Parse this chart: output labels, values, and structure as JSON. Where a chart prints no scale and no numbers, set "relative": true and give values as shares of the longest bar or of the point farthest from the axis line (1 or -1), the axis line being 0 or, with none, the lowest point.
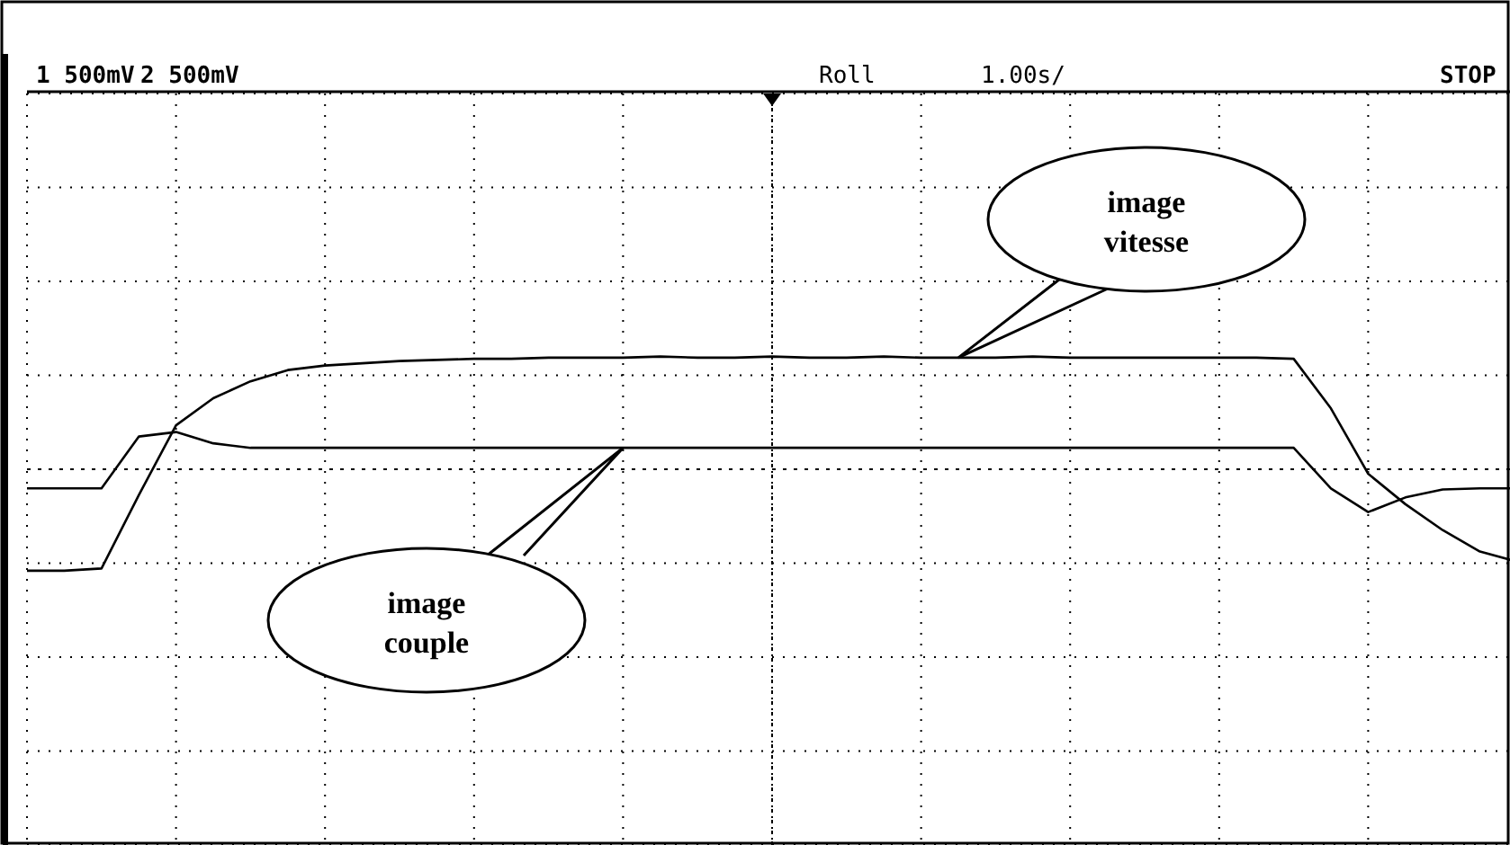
{
  "chart_data": {
    "type": "line",
    "relative": true,
    "grid": true,
    "categories": [
      null,
      null,
      null,
      null,
      null,
      null,
      null,
      null,
      null,
      null,
      null,
      null,
      null,
      null,
      null,
      null,
      null,
      null,
      null,
      null,
      null,
      null,
      null,
      null,
      null,
      null,
      null,
      null,
      null,
      null,
      null,
      null,
      null,
      null,
      null,
      null,
      null,
      null,
      null,
      null,
      null
    ],
    "series": [
      {
        "color": "#000000",
        "values": [
          -0.9,
          -0.9,
          -0.88,
          -0.23,
          0.39,
          0.63,
          0.78,
          0.88,
          0.92,
          0.94,
          0.96,
          0.97,
          0.98,
          0.98,
          0.99,
          0.99,
          0.99,
          1,
          0.99,
          0.99,
          1,
          0.99,
          0.99,
          1,
          0.99,
          0.99,
          0.99,
          1,
          0.99,
          0.99,
          0.99,
          0.99,
          0.99,
          0.99,
          0.98,
          0.54,
          -0.04,
          -0.31,
          -0.54,
          -0.73,
          -0.82
        ]
      },
      {
        "color": "#000000",
        "values": [
          -0.17,
          -0.17,
          -0.17,
          0.29,
          0.33,
          0.23,
          0.19,
          0.19,
          0.19,
          0.19,
          0.19,
          0.19,
          0.19,
          0.19,
          0.19,
          0.19,
          0.19,
          0.19,
          0.19,
          0.19,
          0.19,
          0.19,
          0.19,
          0.19,
          0.19,
          0.19,
          0.19,
          0.19,
          0.19,
          0.19,
          0.19,
          0.19,
          0.19,
          0.19,
          0.19,
          -0.17,
          -0.38,
          -0.25,
          -0.18,
          -0.17,
          -0.17
        ]
      }
    ],
    "annotations": [
      "1  500mV",
      "2  500mV",
      "Roll",
      "1.00s/",
      "STOP",
      "image vitesse",
      "image couple"
    ]
  }
}
